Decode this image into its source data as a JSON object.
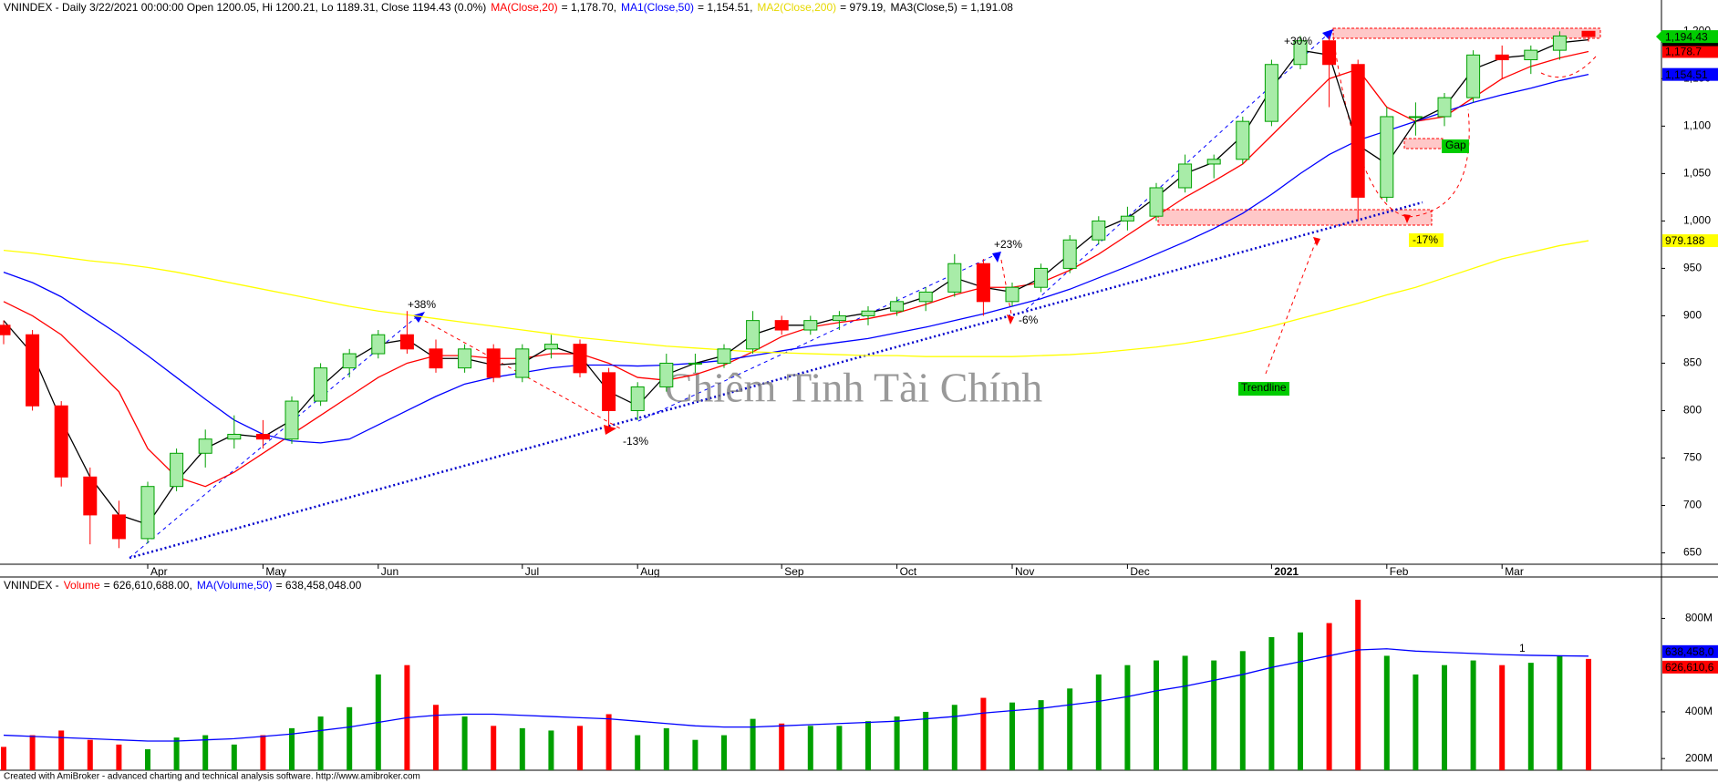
{
  "chart_data": [
    {
      "type": "candlestick",
      "title": "VNINDEX - Daily 3/22/2021 00:00:00 Open 1200.05, Hi 1200.21, Lo 1189.31, Close 1194.43 (0.0%)",
      "categories": [
        null,
        null,
        null,
        null,
        null,
        "Apr",
        null,
        null,
        null,
        "May",
        null,
        null,
        null,
        "Jun",
        null,
        null,
        null,
        null,
        "Jul",
        null,
        null,
        null,
        "Aug",
        null,
        null,
        null,
        null,
        "Sep",
        null,
        null,
        null,
        "Oct",
        null,
        null,
        null,
        "Nov",
        null,
        null,
        null,
        "Dec",
        null,
        null,
        null,
        null,
        "2021",
        null,
        null,
        null,
        "Feb",
        null,
        null,
        null,
        "Mar",
        null,
        null,
        null
      ],
      "open": [
        890,
        880,
        805,
        730,
        690,
        665,
        720,
        755,
        770,
        775,
        770,
        810,
        845,
        860,
        880,
        865,
        845,
        865,
        835,
        865,
        870,
        840,
        800,
        825,
        850,
        850,
        865,
        895,
        885,
        895,
        900,
        905,
        915,
        925,
        955,
        915,
        930,
        950,
        980,
        1000,
        1005,
        1035,
        1060,
        1065,
        1105,
        1165,
        1190,
        1165,
        1025,
        1110,
        1110,
        1130,
        1175,
        1170,
        1180,
        1200.05
      ],
      "high": [
        895,
        885,
        810,
        740,
        705,
        725,
        760,
        780,
        795,
        790,
        815,
        850,
        865,
        885,
        905,
        875,
        870,
        870,
        870,
        880,
        875,
        845,
        830,
        860,
        860,
        870,
        905,
        900,
        900,
        905,
        910,
        920,
        930,
        965,
        960,
        935,
        955,
        985,
        1005,
        1015,
        1040,
        1070,
        1070,
        1110,
        1170,
        1195,
        1195,
        1170,
        1120,
        1125,
        1135,
        1180,
        1185,
        1185,
        1200,
        1200.21
      ],
      "low": [
        870,
        800,
        720,
        659,
        655,
        660,
        715,
        740,
        760,
        760,
        765,
        805,
        835,
        855,
        860,
        840,
        840,
        830,
        830,
        855,
        835,
        780,
        790,
        820,
        840,
        845,
        860,
        880,
        880,
        885,
        890,
        900,
        905,
        920,
        900,
        910,
        925,
        945,
        975,
        990,
        1000,
        1030,
        1045,
        1060,
        1100,
        1160,
        1120,
        1000,
        1020,
        1090,
        1100,
        1125,
        1150,
        1155,
        1170,
        1189.31
      ],
      "close": [
        880,
        805,
        730,
        690,
        665,
        720,
        755,
        770,
        775,
        770,
        810,
        845,
        860,
        880,
        865,
        845,
        865,
        835,
        865,
        870,
        840,
        800,
        825,
        850,
        850,
        865,
        895,
        885,
        895,
        900,
        905,
        915,
        925,
        955,
        915,
        930,
        950,
        980,
        1000,
        1005,
        1035,
        1060,
        1065,
        1105,
        1165,
        1190,
        1165,
        1025,
        1110,
        1110,
        1130,
        1175,
        1170,
        1180,
        1195,
        1194.43
      ],
      "up_color": "#00a000",
      "up_fill": "#a8eca8",
      "down_color": "#ff0000",
      "tag": "1,194.43",
      "tag_color": "#00cc00",
      "series": [
        {
          "name": "MA(Close,20)",
          "color": "#ff0000",
          "legend_text": "= 1,178.70,",
          "tag": "1,178.7",
          "values": [
            915,
            900,
            880,
            850,
            820,
            760,
            730,
            720,
            735,
            755,
            775,
            795,
            815,
            835,
            850,
            858,
            858,
            855,
            855,
            860,
            860,
            850,
            835,
            832,
            838,
            848,
            862,
            878,
            888,
            893,
            897,
            903,
            912,
            922,
            930,
            930,
            935,
            948,
            965,
            985,
            1005,
            1025,
            1042,
            1060,
            1090,
            1120,
            1150,
            1160,
            1120,
            1105,
            1110,
            1130,
            1150,
            1163,
            1172,
            1178.7
          ]
        },
        {
          "name": "MA1(Close,50)",
          "color": "#0000ff",
          "legend_text": "= 1,154.51,",
          "tag": "1,154.51",
          "values": [
            946,
            935,
            920,
            900,
            880,
            858,
            835,
            812,
            790,
            775,
            768,
            766,
            770,
            785,
            800,
            815,
            828,
            835,
            840,
            845,
            848,
            848,
            847,
            848,
            850,
            853,
            858,
            863,
            868,
            872,
            876,
            882,
            888,
            895,
            902,
            910,
            918,
            928,
            940,
            952,
            965,
            978,
            992,
            1008,
            1028,
            1050,
            1070,
            1085,
            1095,
            1105,
            1115,
            1125,
            1133,
            1140,
            1148,
            1154.51
          ]
        },
        {
          "name": "MA2(Close,200)",
          "color": "#ffff00",
          "legend_text": "= 979.19,",
          "tag": "979.188",
          "values": [
            969,
            966,
            962,
            958,
            955,
            951,
            946,
            940,
            934,
            928,
            922,
            916,
            910,
            905,
            901,
            897,
            893,
            889,
            885,
            881,
            877,
            874,
            871,
            868,
            866,
            864,
            862,
            861,
            860,
            859,
            858,
            858,
            857,
            857,
            857,
            857,
            858,
            859,
            861,
            864,
            867,
            871,
            876,
            882,
            889,
            897,
            905,
            913,
            922,
            930,
            940,
            950,
            960,
            967,
            974,
            979.19
          ]
        },
        {
          "name": "MA3(Close,5)",
          "color": "#000000",
          "legend_text": "= 1,191.08",
          "tag": "1,191.08",
          "values": [
            895,
            860,
            790,
            730,
            690,
            680,
            725,
            760,
            775,
            772,
            790,
            825,
            852,
            870,
            875,
            855,
            855,
            848,
            850,
            868,
            858,
            820,
            805,
            838,
            850,
            858,
            880,
            890,
            890,
            898,
            903,
            910,
            920,
            940,
            930,
            925,
            940,
            965,
            990,
            1003,
            1025,
            1050,
            1062,
            1090,
            1140,
            1180,
            1175,
            1080,
            1060,
            1105,
            1120,
            1160,
            1172,
            1175,
            1188,
            1191.08
          ]
        }
      ],
      "ylim": [
        638,
        1233
      ],
      "yticks": [
        650,
        700,
        750,
        800,
        850,
        900,
        950,
        {
          "value": 1000,
          "label": "1,000"
        },
        {
          "value": 1050,
          "label": "1,050"
        },
        {
          "value": 1100,
          "label": "1,100"
        },
        {
          "value": 1150,
          "label": "1,150"
        },
        {
          "value": 1200,
          "label": "1,200"
        }
      ],
      "grid": false,
      "annotations": [
        "+38%",
        "-13%",
        "+23%",
        "-6%",
        "+30%",
        "-17%",
        "Gap",
        "Trendline"
      ],
      "watermark": "Chiêm Tinh Tài Chính"
    },
    {
      "type": "bar",
      "title": "VNINDEX -",
      "series": [
        {
          "name": "Volume",
          "color": "#ff0000",
          "legend_text": "= 626,610,688.00,",
          "tag": "626,610,6",
          "values": [
            250,
            300,
            320,
            280,
            260,
            240,
            290,
            300,
            260,
            300,
            330,
            380,
            420,
            560,
            600,
            430,
            380,
            340,
            330,
            320,
            340,
            390,
            300,
            330,
            280,
            300,
            370,
            350,
            340,
            340,
            360,
            380,
            400,
            430,
            460,
            440,
            450,
            500,
            560,
            600,
            620,
            640,
            620,
            660,
            720,
            740,
            780,
            880,
            640,
            560,
            600,
            620,
            600,
            610,
            640,
            626.610688
          ]
        },
        {
          "name": "MA(Volume,50)",
          "color": "#0000ff",
          "legend_text": "= 638,458,048.00",
          "tag": "638,458,0",
          "values": [
            300,
            295,
            290,
            285,
            280,
            275,
            275,
            280,
            285,
            295,
            305,
            320,
            335,
            355,
            375,
            385,
            390,
            390,
            385,
            380,
            375,
            370,
            360,
            350,
            340,
            335,
            335,
            340,
            345,
            350,
            355,
            360,
            370,
            380,
            395,
            405,
            415,
            430,
            445,
            465,
            490,
            510,
            535,
            560,
            590,
            615,
            640,
            665,
            670,
            660,
            655,
            650,
            645,
            642,
            640,
            638.458048
          ]
        }
      ],
      "up_color": "#00a000",
      "down_color": "#ff0000",
      "ylim": [
        150,
        950
      ],
      "yticks": [
        {
          "value": 200,
          "label": "200M"
        },
        {
          "value": 400,
          "label": "400M"
        },
        {
          "value": 800,
          "label": "800M"
        }
      ],
      "annotations": [
        "1"
      ]
    }
  ],
  "footer": "Created with AmiBroker - advanced charting and technical analysis software. http://www.amibroker.com"
}
